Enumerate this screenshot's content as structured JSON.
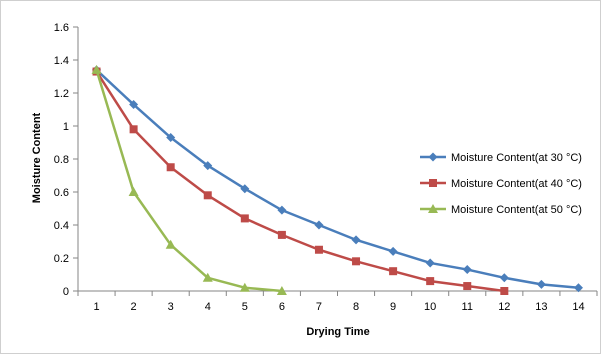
{
  "chart_data": {
    "type": "line",
    "xlabel": "Drying Time",
    "ylabel": "Moisture Content",
    "x": [
      1,
      2,
      3,
      4,
      5,
      6,
      7,
      8,
      9,
      10,
      11,
      12,
      13,
      14
    ],
    "xticks": [
      "1",
      "2",
      "3",
      "4",
      "5",
      "6",
      "7",
      "8",
      "9",
      "10",
      "11",
      "12",
      "13",
      "14"
    ],
    "ylim": [
      0,
      1.6
    ],
    "yticks": [
      "0",
      "0.2",
      "0.4",
      "0.6",
      "0.8",
      "1",
      "1.2",
      "1.4",
      "1.6"
    ],
    "grid": false,
    "legend_position": "right",
    "series": [
      {
        "name": "Moisture Content(at 30 °C)",
        "color": "#4a7ebb",
        "marker": "diamond",
        "x": [
          1,
          2,
          3,
          4,
          5,
          6,
          7,
          8,
          9,
          10,
          11,
          12,
          13,
          14
        ],
        "values": [
          1.34,
          1.13,
          0.93,
          0.76,
          0.62,
          0.49,
          0.4,
          0.31,
          0.24,
          0.17,
          0.13,
          0.08,
          0.04,
          0.02
        ]
      },
      {
        "name": "Moisture Content(at 40 °C)",
        "color": "#be4b48",
        "marker": "square",
        "x": [
          1,
          2,
          3,
          4,
          5,
          6,
          7,
          8,
          9,
          10,
          11,
          12
        ],
        "values": [
          1.33,
          0.98,
          0.75,
          0.58,
          0.44,
          0.34,
          0.25,
          0.18,
          0.12,
          0.06,
          0.03,
          0.0
        ]
      },
      {
        "name": "Moisture Content(at 50 °C)",
        "color": "#98b954",
        "marker": "triangle",
        "x": [
          1,
          2,
          3,
          4,
          5,
          6
        ],
        "values": [
          1.34,
          0.6,
          0.28,
          0.08,
          0.02,
          0.0
        ]
      }
    ]
  }
}
